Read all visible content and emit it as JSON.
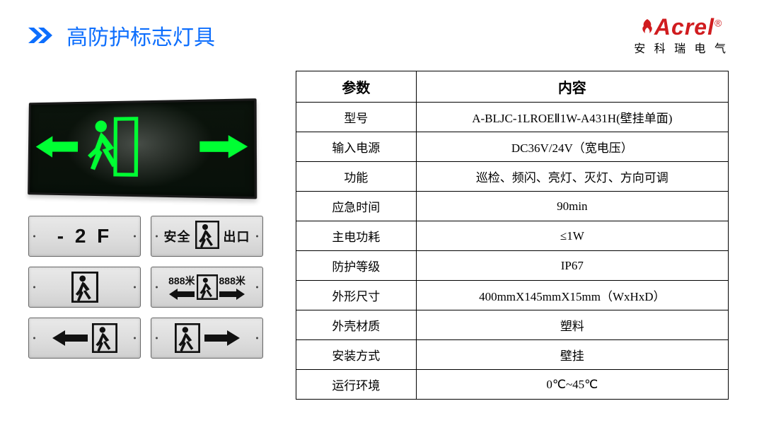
{
  "header": {
    "title": "高防护标志灯具",
    "chevron_color": "#0d6efd",
    "title_color": "#0d6efd"
  },
  "logo": {
    "brand": "Acrel",
    "reg": "®",
    "sub": "安 科 瑞 电 气",
    "color": "#d01c1f"
  },
  "product": {
    "glow_color": "#00ff33",
    "panel_bg": "#0a110a",
    "small_labels": {
      "floor": "- 2 F",
      "safety_left": "安全",
      "safety_right": "出口",
      "distance": "888米"
    }
  },
  "table": {
    "headers": {
      "param": "参数",
      "value": "内容"
    },
    "rows": [
      {
        "param": "型号",
        "value": "A-BLJC-1LROEⅡ1W-A431H(壁挂单面)",
        "highlight": false
      },
      {
        "param": "输入电源",
        "value": "DC36V/24V（宽电压）",
        "highlight": false
      },
      {
        "param": "功能",
        "value": "巡检、频闪、亮灯、灭灯、方向可调",
        "highlight": false
      },
      {
        "param": "应急时间",
        "value": "90min",
        "highlight": false
      },
      {
        "param": "主电功耗",
        "value": "≤1W",
        "highlight": false
      },
      {
        "param": "防护等级",
        "value": "IP67",
        "highlight": true
      },
      {
        "param": "外形尺寸",
        "value": "400mmX145mmX15mm（WxHxD）",
        "highlight": false
      },
      {
        "param": "外壳材质",
        "value": "塑料",
        "highlight": false
      },
      {
        "param": "安装方式",
        "value": "壁挂",
        "highlight": false
      },
      {
        "param": "运行环境",
        "value": "0℃~45℃",
        "highlight": false
      }
    ],
    "border_color": "#000000",
    "highlight_color": "#d01c1f",
    "font_size_header": 20,
    "font_size_cell": 17
  }
}
